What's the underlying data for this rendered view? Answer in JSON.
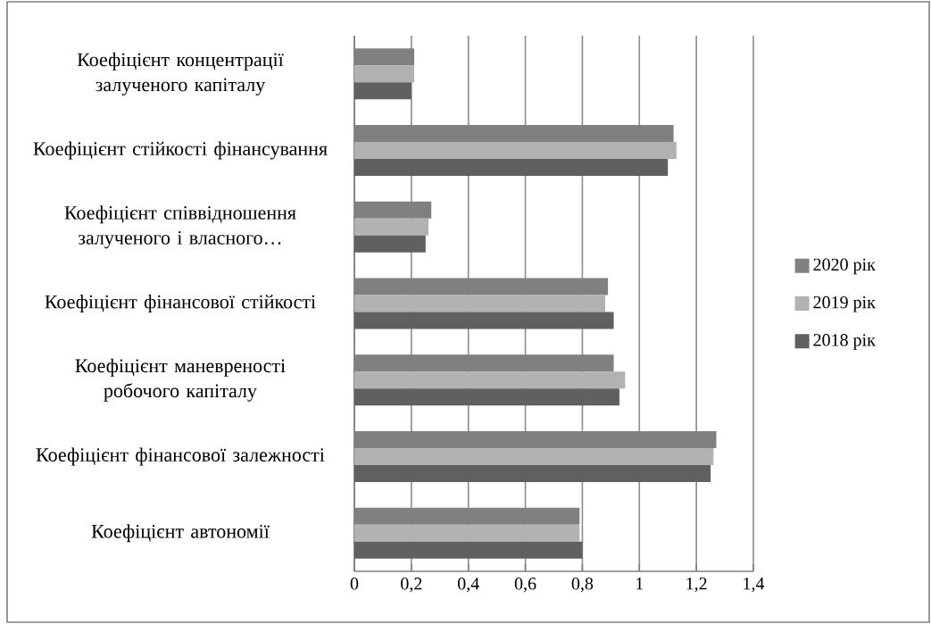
{
  "chart_data": {
    "type": "bar",
    "orientation": "horizontal",
    "categories": [
      "Коефіцієнт концентрації залученого капіталу",
      "Коефіцієнт стійкості фінансування",
      "Коефіцієнт співвідношення залученого і власного…",
      "Коефіцієнт фінансової стійкості",
      "Коефіцієнт маневреності робочого капіталу",
      "Коефіцієнт фінансової залежності",
      "Коефіцієнт автономії"
    ],
    "series": [
      {
        "name": "2020 рік",
        "color": "#808080",
        "values": [
          0.21,
          1.12,
          0.27,
          0.89,
          0.91,
          1.27,
          0.79
        ]
      },
      {
        "name": "2019 рік",
        "color": "#b2b2b2",
        "values": [
          0.21,
          1.13,
          0.26,
          0.88,
          0.95,
          1.26,
          0.79
        ]
      },
      {
        "name": "2018 рік",
        "color": "#606060",
        "values": [
          0.2,
          1.1,
          0.25,
          0.91,
          0.93,
          1.25,
          0.8
        ]
      }
    ],
    "xlim": [
      0,
      1.4
    ],
    "xticks": [
      0,
      {
        "value": 0.2,
        "label": "0,2"
      },
      {
        "value": 0.4,
        "label": "0,4"
      },
      {
        "value": 0.6,
        "label": "0,6"
      },
      {
        "value": 0.8,
        "label": "0,8"
      },
      1,
      {
        "value": 1.2,
        "label": "1,2"
      },
      {
        "value": 1.4,
        "label": "1,4"
      }
    ],
    "grid": "x",
    "legend": "right"
  }
}
